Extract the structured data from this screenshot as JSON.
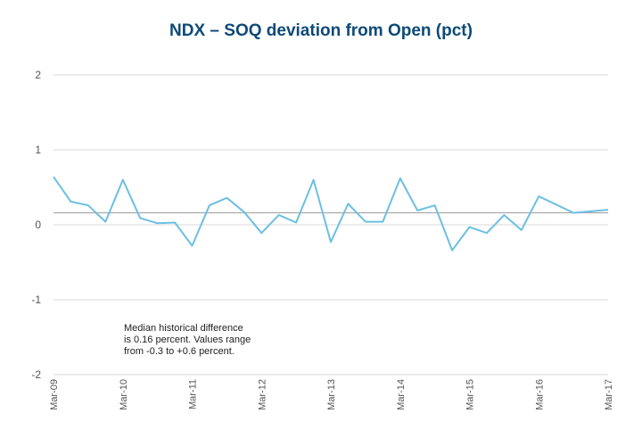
{
  "chart_data": {
    "type": "line",
    "title": "NDX – SOQ deviation from Open (pct)",
    "xlabel": "",
    "ylabel": "",
    "ylim": [
      -2,
      2
    ],
    "yticks": [
      2,
      1,
      0,
      -1,
      -2
    ],
    "x_tick_labels": [
      "Mar-09",
      "Mar-10",
      "Mar-11",
      "Mar-12",
      "Mar-13",
      "Mar-14",
      "Mar-15",
      "Mar-16",
      "Mar-17"
    ],
    "series": [
      {
        "name": "SOQ deviation",
        "color": "#6cbfe3",
        "values": [
          0.64,
          0.31,
          0.26,
          0.04,
          0.6,
          0.09,
          0.02,
          0.03,
          -0.28,
          0.26,
          0.36,
          0.17,
          -0.11,
          0.13,
          0.03,
          0.6,
          -0.23,
          0.28,
          0.04,
          0.04,
          0.62,
          0.19,
          0.26,
          -0.34,
          -0.03,
          -0.11,
          0.13,
          -0.07,
          0.38,
          0.27,
          0.16,
          0.18,
          0.2
        ]
      }
    ],
    "median": {
      "value": 0.16,
      "color": "#a6a6a6"
    },
    "annotation": [
      "Median historical difference",
      "is 0.16 percent.  Values range",
      "from  -0.3 to +0.6 percent."
    ],
    "grid": true
  },
  "colors": {
    "title": "#0d4a78",
    "grid": "#d9d9d9",
    "line": "#6cbfe3",
    "median": "#a6a6a6"
  }
}
